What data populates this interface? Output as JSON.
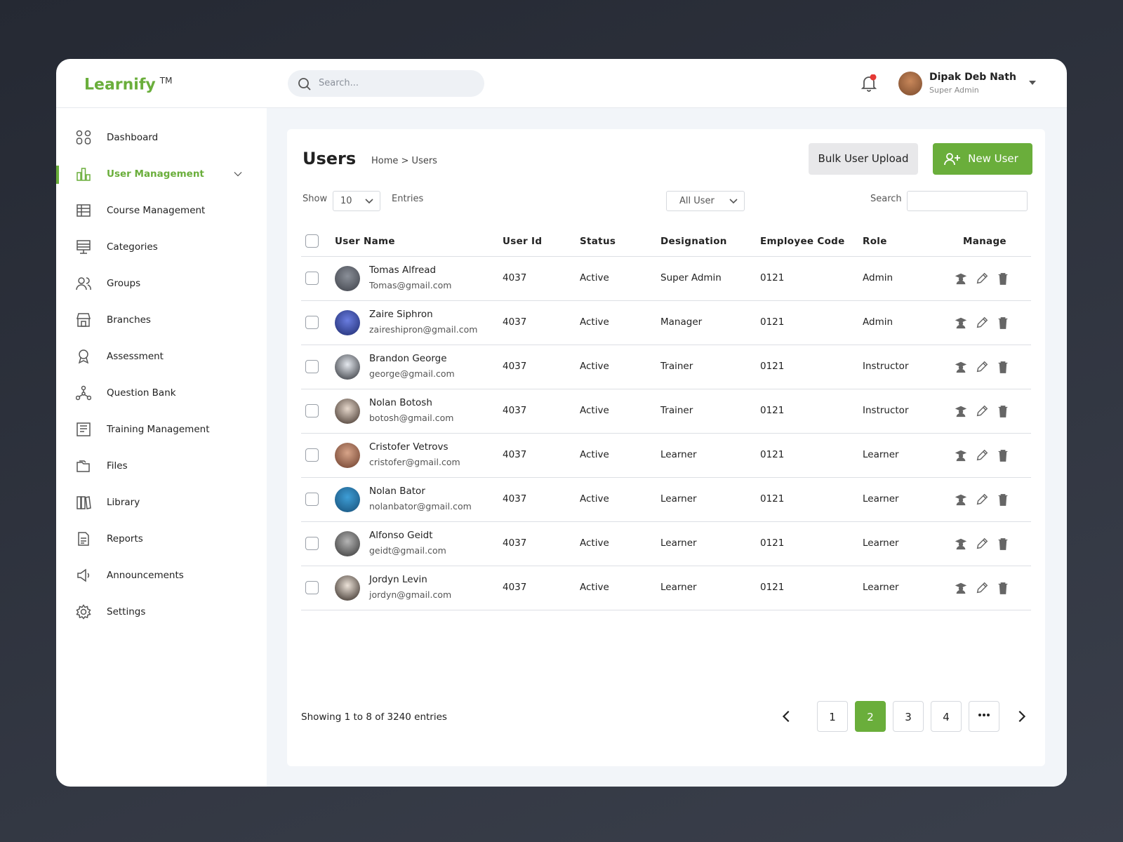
{
  "brand": {
    "name": "Learnify",
    "mark": "TM"
  },
  "header": {
    "search_placeholder": "Search...",
    "user_name": "Dipak Deb Nath",
    "user_role": "Super Admin"
  },
  "nav": [
    {
      "label": "Dashboard",
      "active": false
    },
    {
      "label": "User Management",
      "active": true
    },
    {
      "label": "Course Management",
      "active": false
    },
    {
      "label": "Categories",
      "active": false
    },
    {
      "label": "Groups",
      "active": false
    },
    {
      "label": "Branches",
      "active": false
    },
    {
      "label": "Assessment",
      "active": false
    },
    {
      "label": "Question Bank",
      "active": false
    },
    {
      "label": "Training Management",
      "active": false
    },
    {
      "label": "Files",
      "active": false
    },
    {
      "label": "Library",
      "active": false
    },
    {
      "label": "Reports",
      "active": false
    },
    {
      "label": "Announcements",
      "active": false
    },
    {
      "label": "Settings",
      "active": false
    }
  ],
  "page": {
    "title": "Users",
    "breadcrumb_home": "Home",
    "breadcrumb_current": "> Users",
    "bulk_button": "Bulk User Upload",
    "new_button": "New User"
  },
  "controls": {
    "show": "Show",
    "entries_value": "10",
    "entries": "Entries",
    "filter": "All User",
    "search": "Search"
  },
  "table": {
    "headers": [
      "User Name",
      "User Id",
      "Status",
      "Designation",
      "Employee Code",
      "Role",
      "Manage"
    ],
    "rows": [
      [
        "Tomas Alfread",
        "Tomas@gmail.com",
        "4037",
        "Active",
        "Super Admin",
        "0121",
        "Admin"
      ],
      [
        "Zaire Siphron",
        "zaireshipron@gmail.com",
        "4037",
        "Active",
        "Manager",
        "0121",
        "Admin"
      ],
      [
        "Brandon George",
        "george@gmail.com",
        "4037",
        "Active",
        "Trainer",
        "0121",
        "Instructor"
      ],
      [
        "Nolan Botosh",
        "botosh@gmail.com",
        "4037",
        "Active",
        "Trainer",
        "0121",
        "Instructor"
      ],
      [
        "Cristofer Vetrovs",
        "cristofer@gmail.com",
        "4037",
        "Active",
        "Learner",
        "0121",
        "Learner"
      ],
      [
        "Nolan Bator",
        "nolanbator@gmail.com",
        "4037",
        "Active",
        "Learner",
        "0121",
        "Learner"
      ],
      [
        "Alfonso Geidt",
        "geidt@gmail.com",
        "4037",
        "Active",
        "Learner",
        "0121",
        "Learner"
      ],
      [
        "Jordyn Levin",
        "jordyn@gmail.com",
        "4037",
        "Active",
        "Learner",
        "0121",
        "Learner"
      ]
    ]
  },
  "footer": {
    "summary": "Showing 1 to 8 of 3240 entries",
    "pages": [
      {
        "label": "1",
        "active": false
      },
      {
        "label": "2",
        "active": true
      },
      {
        "label": "3",
        "active": false
      },
      {
        "label": "4",
        "active": false
      }
    ]
  }
}
